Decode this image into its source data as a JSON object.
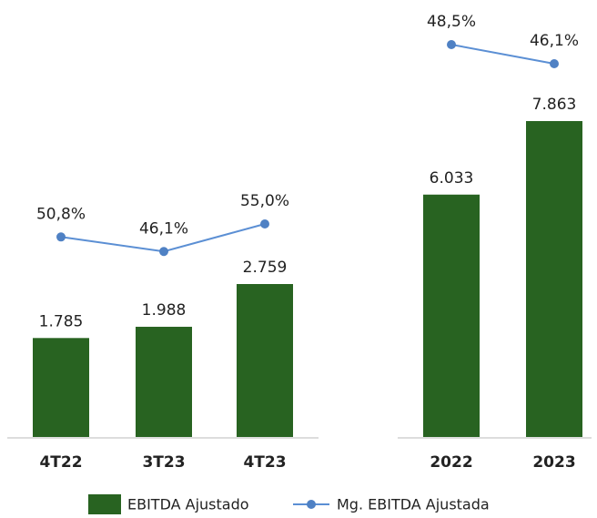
{
  "chart_data": [
    {
      "type": "bar",
      "categories": [
        "4T22",
        "3T23",
        "4T23"
      ],
      "series": [
        {
          "name": "EBITDA Ajustado",
          "color": "#286321",
          "values": [
            1785,
            1988,
            2759
          ],
          "value_labels": [
            "1.785",
            "1.988",
            "2.759"
          ]
        },
        {
          "name": "Mg. EBITDA Ajustada",
          "color": "#5b8fd4",
          "axis": "y2",
          "values": [
            50.8,
            46.1,
            55.0
          ],
          "value_labels": [
            "50,8%",
            "46,1%",
            "55,0%"
          ]
        }
      ]
    },
    {
      "type": "bar",
      "categories": [
        "2022",
        "2023"
      ],
      "series": [
        {
          "name": "EBITDA Ajustado",
          "color": "#286321",
          "values": [
            6033,
            7863
          ],
          "value_labels": [
            "6.033",
            "7.863"
          ]
        },
        {
          "name": "Mg. EBITDA Ajustada",
          "color": "#5b8fd4",
          "axis": "y2",
          "values": [
            48.5,
            46.1
          ],
          "value_labels": [
            "48,5%",
            "46,1%"
          ]
        }
      ]
    }
  ]
}
